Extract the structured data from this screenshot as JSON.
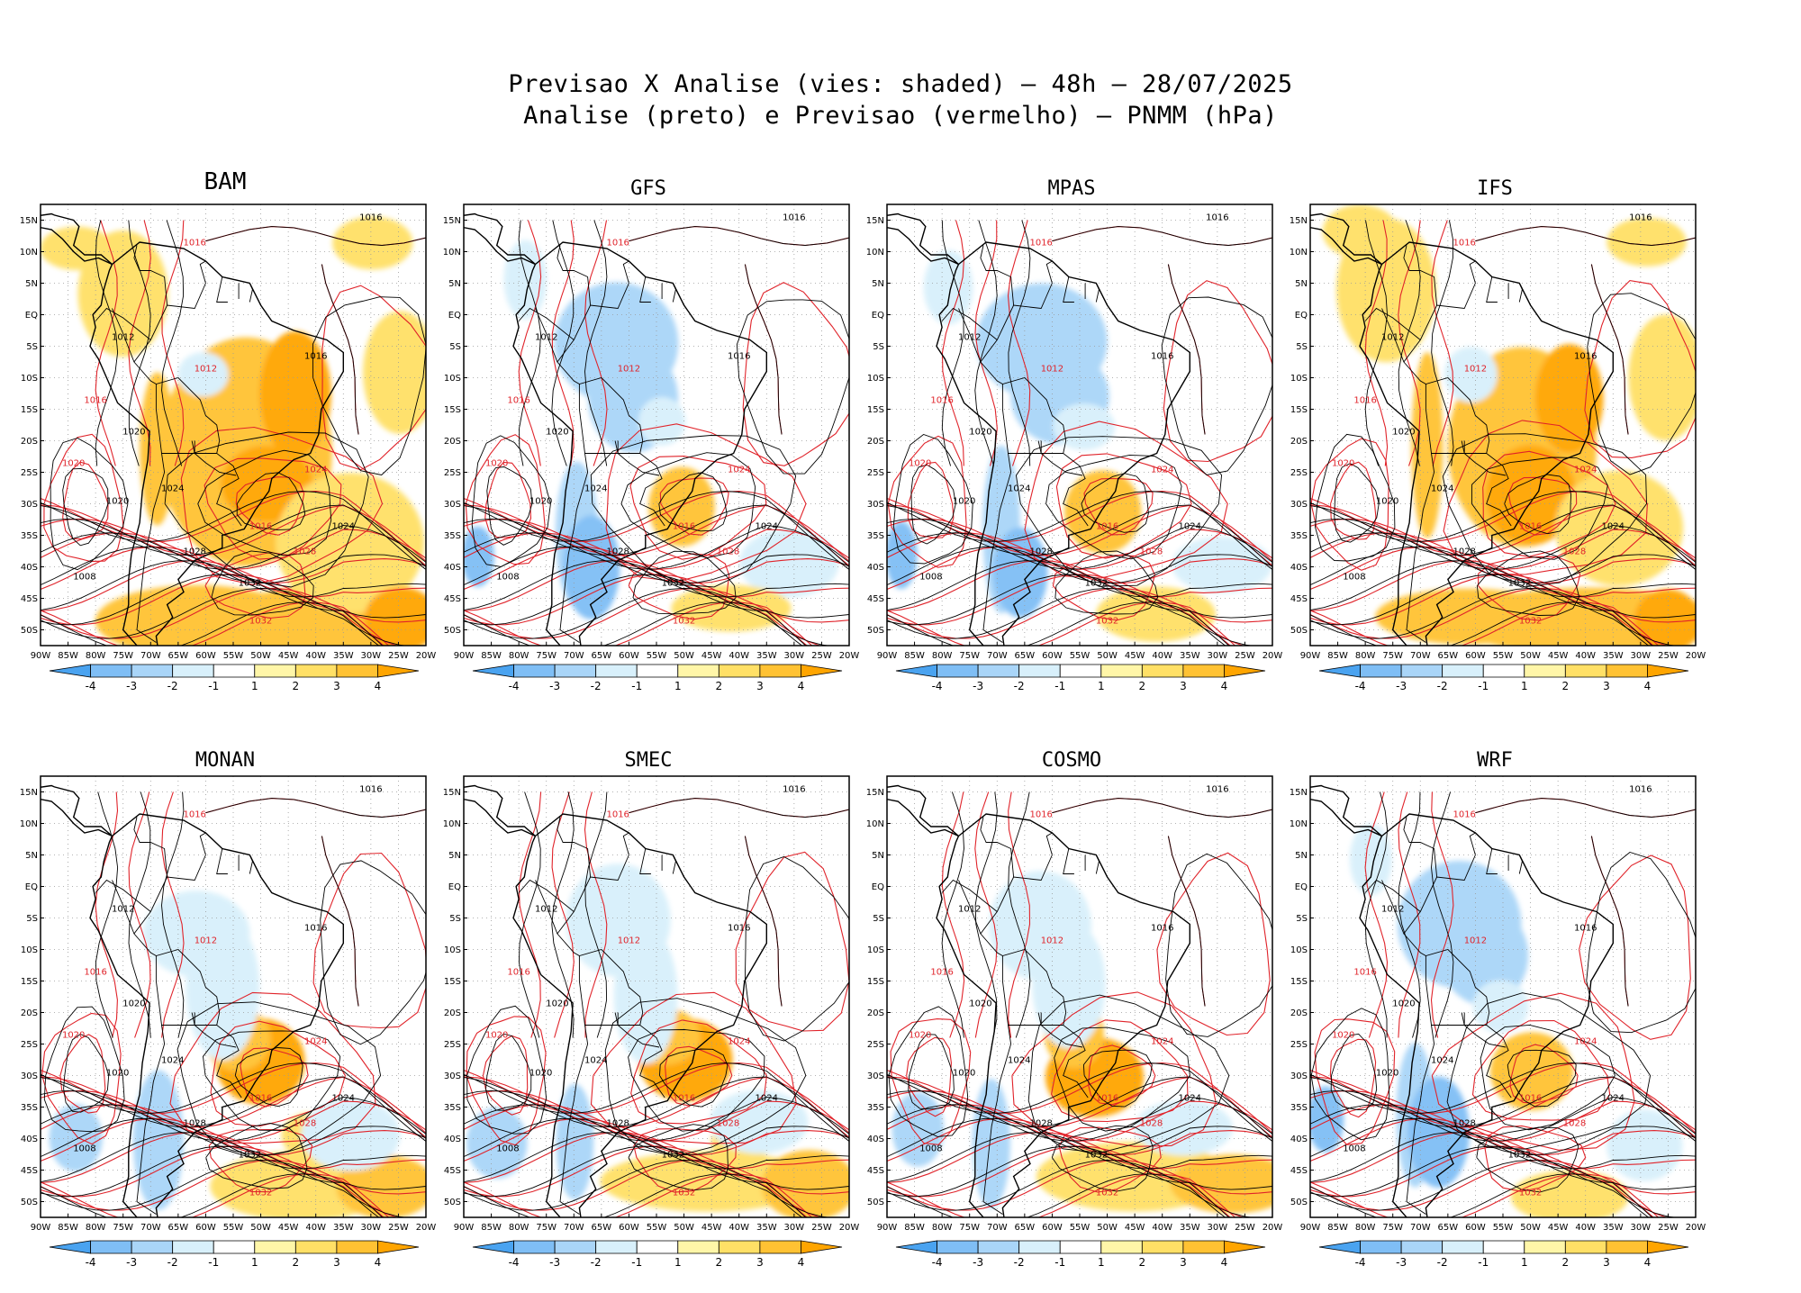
{
  "title": {
    "line1": "Previsao X Analise (vies: shaded) — 48h — 28/07/2025",
    "line2": "Analise (preto) e Previsao (vermelho) — PNMM (hPa)"
  },
  "lat_labels": [
    "15N",
    "10N",
    "5N",
    "EQ",
    "5S",
    "10S",
    "15S",
    "20S",
    "25S",
    "30S",
    "35S",
    "40S",
    "45S",
    "50S"
  ],
  "lon_labels": [
    "90W",
    "85W",
    "80W",
    "75W",
    "70W",
    "65W",
    "60W",
    "55W",
    "50W",
    "45W",
    "40W",
    "35W",
    "30W",
    "25W",
    "20W"
  ],
  "colorbar": {
    "ticks": [
      "-4",
      "-3",
      "-2",
      "-1",
      "1",
      "2",
      "3",
      "4"
    ],
    "colors": [
      "#4aa3f0",
      "#7fbef5",
      "#a9d5f8",
      "#d8f0fb",
      "#ffffff",
      "#fff6a8",
      "#ffe066",
      "#ffc233",
      "#ffa500"
    ]
  },
  "colors": {
    "analysis": "#000000",
    "forecast": "#e0232a"
  },
  "panels": [
    {
      "name": "BAM",
      "bias": "warm"
    },
    {
      "name": "GFS",
      "bias": "cold"
    },
    {
      "name": "MPAS",
      "bias": "cold"
    },
    {
      "name": "IFS",
      "bias": "warm"
    },
    {
      "name": "MONAN",
      "bias": "mixed"
    },
    {
      "name": "SMEC",
      "bias": "mixed"
    },
    {
      "name": "COSMO",
      "bias": "mixed"
    },
    {
      "name": "WRF",
      "bias": "cold"
    }
  ],
  "contour_labels": [
    "1008",
    "1012",
    "1016",
    "1020",
    "1024",
    "1028",
    "1032"
  ]
}
